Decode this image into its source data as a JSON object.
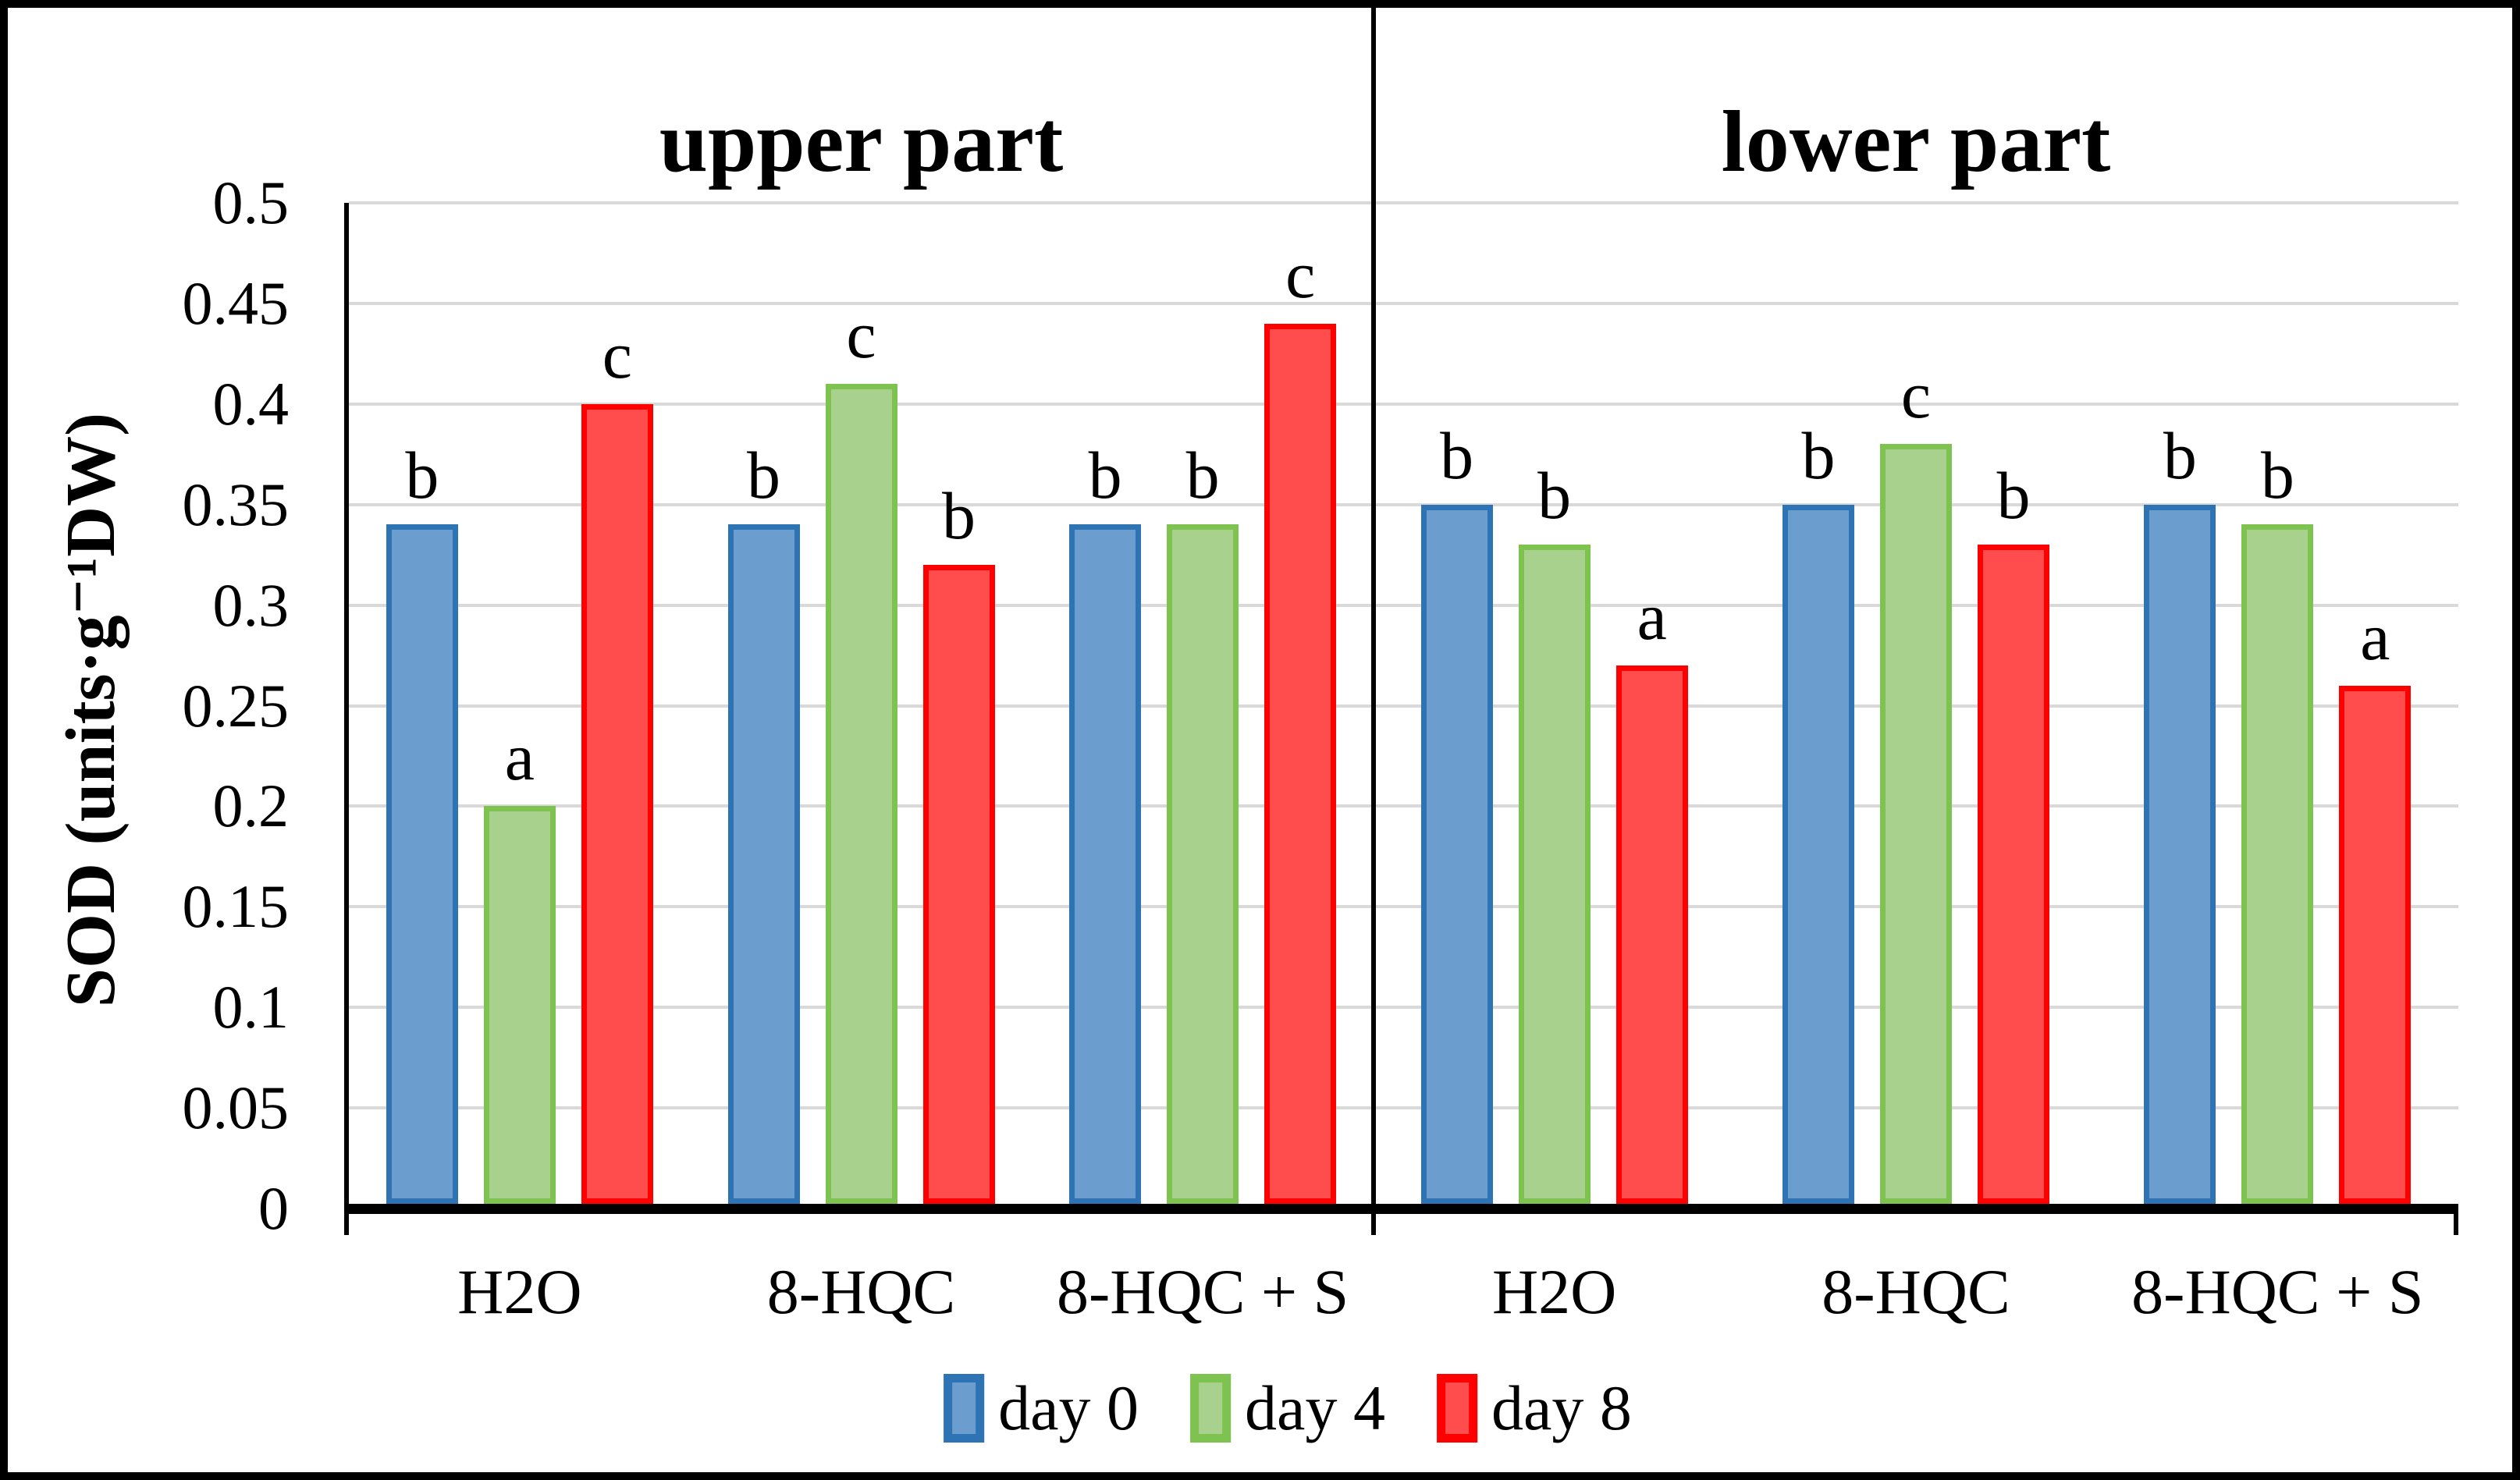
{
  "chart_data": {
    "type": "bar",
    "ylabel": "SOD (units·g⁻¹DW)",
    "y_axis": {
      "min": 0,
      "max": 0.5,
      "step": 0.05,
      "tick_labels": [
        "0.5",
        "0.45",
        "0.4",
        "0.35",
        "0.3",
        "0.25",
        "0.2",
        "0.15",
        "0.1",
        "0.05",
        "0"
      ]
    },
    "grid": true,
    "gridline_color": "#D9D9D9",
    "axis_color": "#000000",
    "legend_position": "bottom",
    "series": [
      {
        "name": "day 0",
        "fill": "#6B9DCE",
        "border": "#2E74B5"
      },
      {
        "name": "day 4",
        "fill": "#A9D18E",
        "border": "#7EC250"
      },
      {
        "name": "day 8",
        "fill": "#FF4D4D",
        "border": "#FF0000"
      }
    ],
    "panels": [
      {
        "title": "upper part",
        "categories": [
          "H2O",
          "8-HQC",
          "8-HQC + S"
        ],
        "values": [
          [
            0.34,
            0.2,
            0.4
          ],
          [
            0.34,
            0.41,
            0.32
          ],
          [
            0.34,
            0.34,
            0.44
          ]
        ],
        "letters": [
          [
            "b",
            "a",
            "c"
          ],
          [
            "b",
            "c",
            "b"
          ],
          [
            "b",
            "b",
            "c"
          ]
        ]
      },
      {
        "title": "lower part",
        "categories": [
          "H2O",
          "8-HQC",
          "8-HQC + S"
        ],
        "values": [
          [
            0.35,
            0.33,
            0.27
          ],
          [
            0.35,
            0.38,
            0.33
          ],
          [
            0.35,
            0.34,
            0.26
          ]
        ],
        "letters": [
          [
            "b",
            "b",
            "a"
          ],
          [
            "b",
            "c",
            "b"
          ],
          [
            "b",
            "b",
            "a"
          ]
        ]
      }
    ],
    "legend": [
      "day 0",
      "day 4",
      "day 8"
    ]
  }
}
